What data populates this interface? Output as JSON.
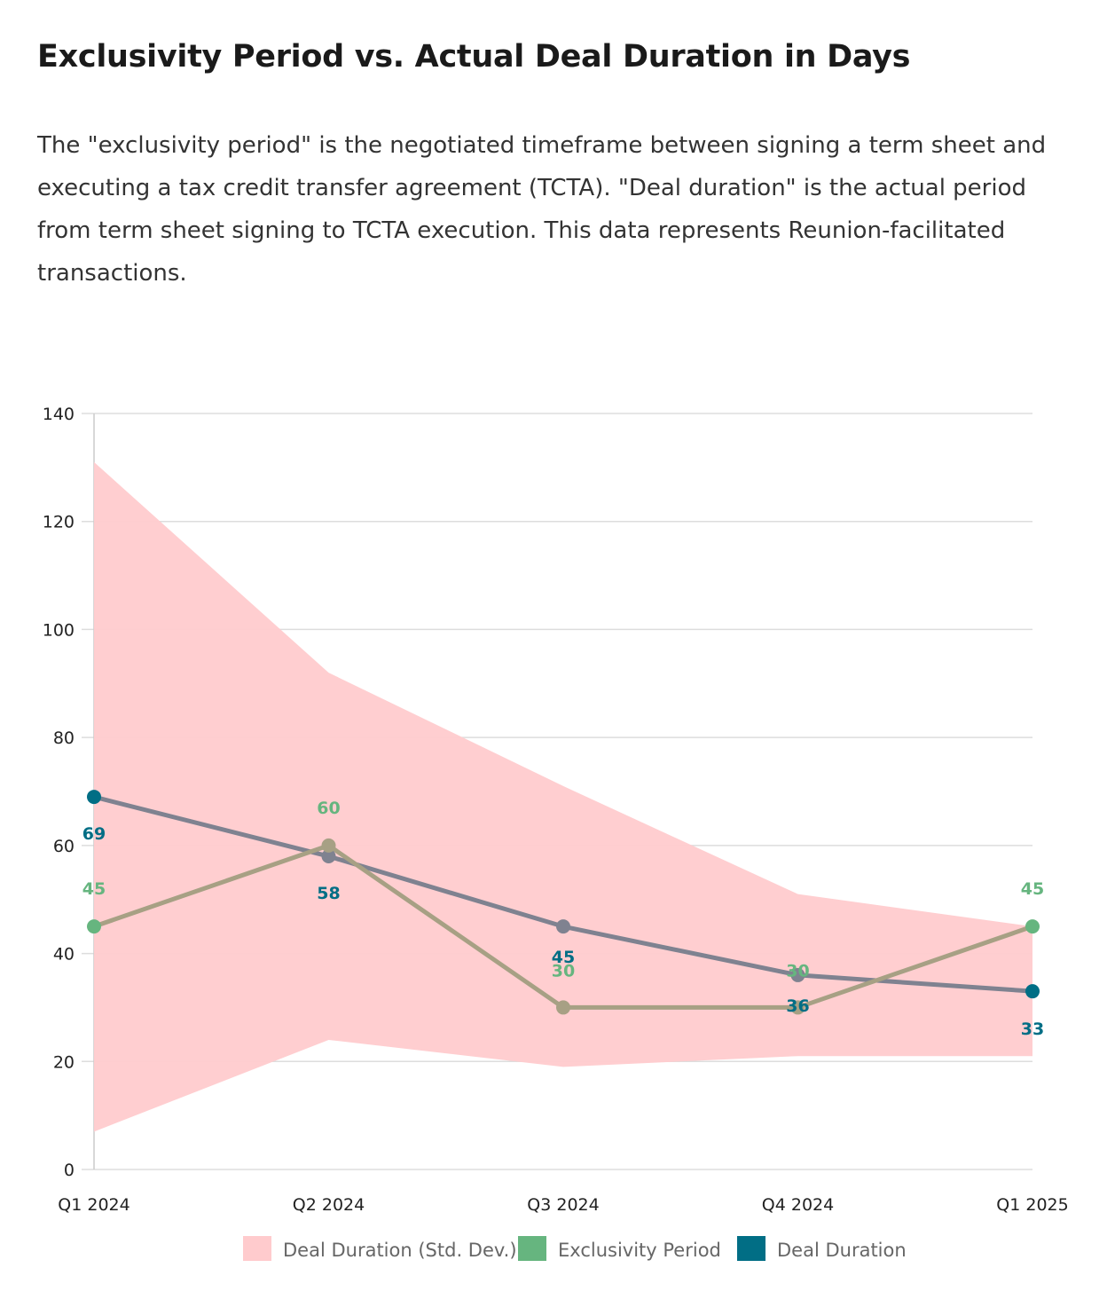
{
  "title": "Exclusivity Period vs. Actual Deal Duration in Days",
  "subtitle": "The \"exclusivity period\" is the negotiated timeframe between signing a term sheet and executing a tax credit transfer agreement (TCTA). \"Deal duration\" is the actual period from term sheet signing to TCTA execution. This data represents Reunion-facilitated transactions.",
  "colors": {
    "band": "#ffcbcd",
    "exclusivity": "#66b57f",
    "deal": "#016e85",
    "deal_line": "#7f8290",
    "exclusivity_line": "#a7a084",
    "grid": "#dddddd"
  },
  "chart_data": {
    "type": "line",
    "title": "Exclusivity Period vs. Actual Deal Duration in Days",
    "categories": [
      "Q1 2024",
      "Q2 2024",
      "Q3 2024",
      "Q4 2024",
      "Q1 2025"
    ],
    "ylim": [
      0,
      140
    ],
    "yticks": [
      0,
      20,
      40,
      60,
      80,
      100,
      120,
      140
    ],
    "grid": true,
    "legend_position": "bottom",
    "band": {
      "name": "Deal Duration (Std. Dev.)",
      "lower": [
        7,
        24,
        19,
        21,
        21
      ],
      "upper": [
        131,
        92,
        71,
        51,
        45
      ]
    },
    "series": [
      {
        "name": "Exclusivity Period",
        "values": [
          45,
          60,
          30,
          30,
          45
        ]
      },
      {
        "name": "Deal Duration",
        "values": [
          69,
          58,
          45,
          36,
          33
        ]
      }
    ]
  }
}
